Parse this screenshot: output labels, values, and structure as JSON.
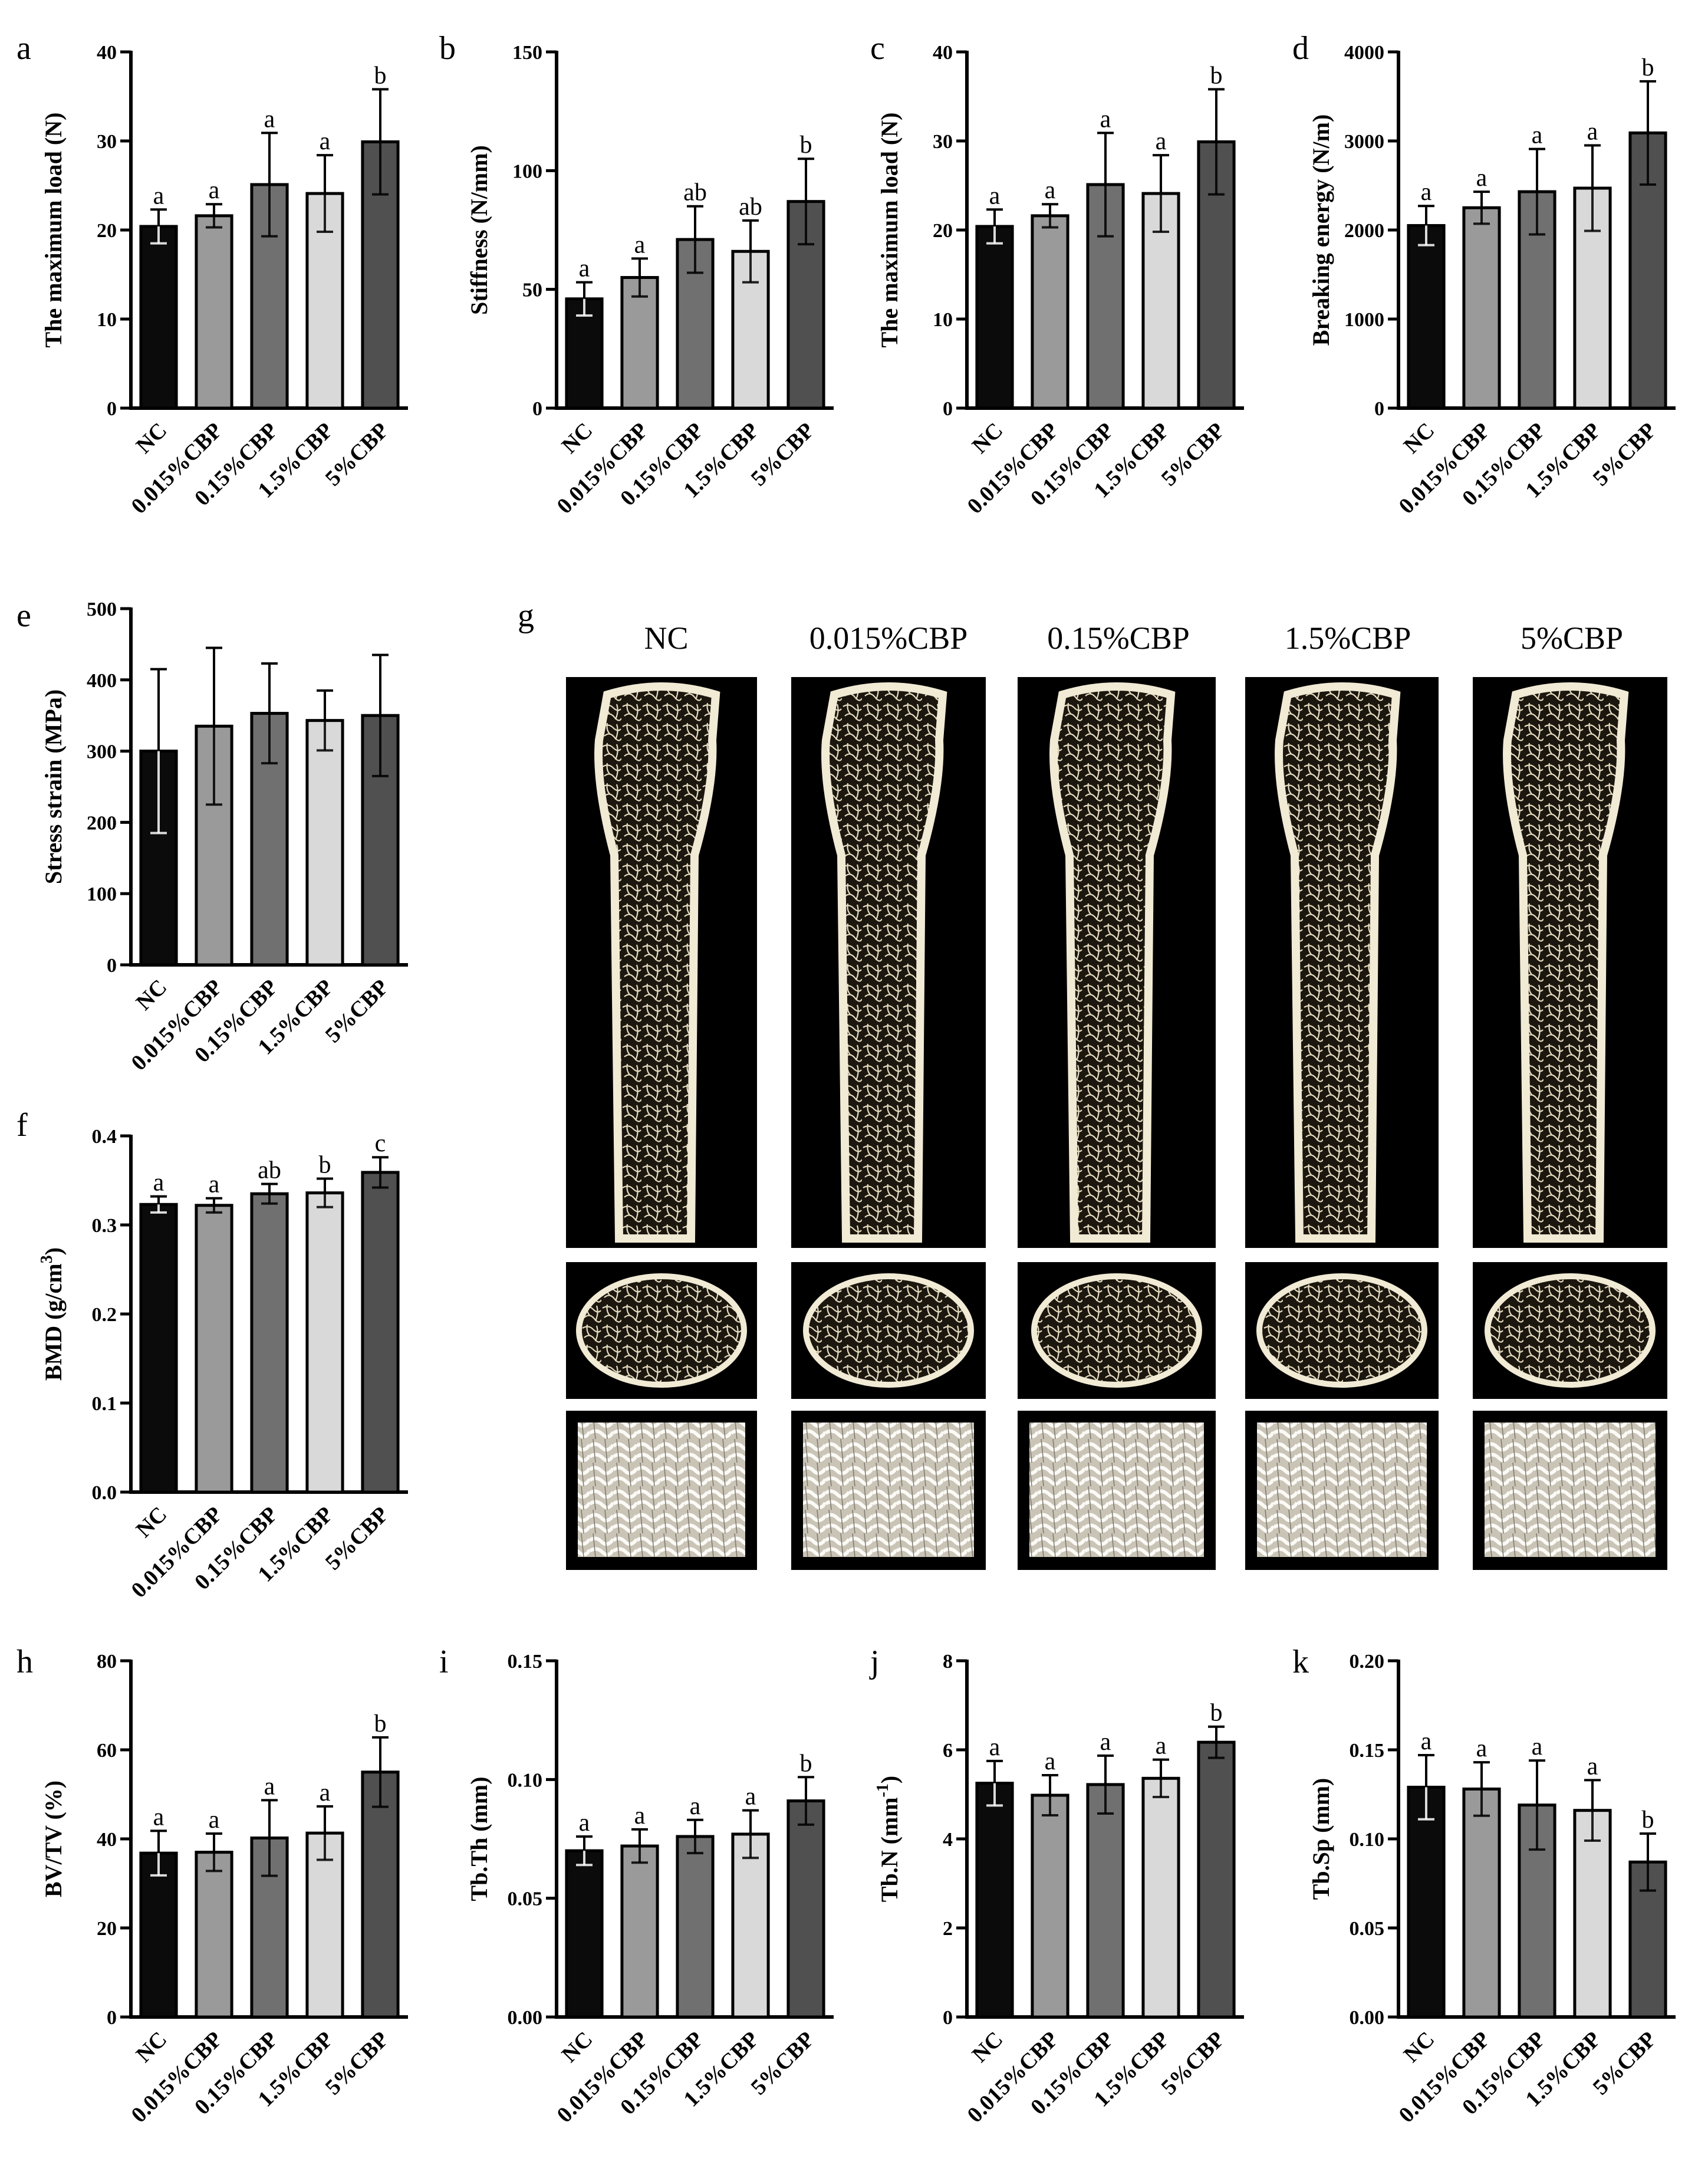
{
  "colors": {
    "bars": [
      "#0b0b0b",
      "#9a9a9a",
      "#707070",
      "#d9d9d9",
      "#505050"
    ]
  },
  "chart_data": [
    {
      "id": "a",
      "type": "bar",
      "title": "",
      "panel_label": "a",
      "ylabel": "The maximum load (N)",
      "xlabel": "",
      "categories": [
        "NC",
        "0.015%CBP",
        "0.15%CBP",
        "1.5%CBP",
        "5%CBP"
      ],
      "values": [
        20.4,
        21.6,
        25.1,
        24.1,
        29.9
      ],
      "errors": [
        1.9,
        1.3,
        5.8,
        4.3,
        5.9
      ],
      "significance": [
        "a",
        "a",
        "a",
        "a",
        "b"
      ],
      "ylim": [
        0,
        40
      ],
      "yticks": [
        0,
        10,
        20,
        30,
        40
      ],
      "ytick_labels": [
        "0",
        "10",
        "20",
        "30",
        "40"
      ]
    },
    {
      "id": "b",
      "type": "bar",
      "title": "",
      "panel_label": "b",
      "ylabel": "Stiffness (N/mm)",
      "xlabel": "",
      "categories": [
        "NC",
        "0.015%CBP",
        "0.15%CBP",
        "1.5%CBP",
        "5%CBP"
      ],
      "values": [
        46,
        55,
        71,
        66,
        87
      ],
      "errors": [
        7,
        8,
        14,
        13,
        18
      ],
      "significance": [
        "a",
        "a",
        "ab",
        "ab",
        "b"
      ],
      "ylim": [
        0,
        150
      ],
      "yticks": [
        0,
        50,
        100,
        150
      ],
      "ytick_labels": [
        "0",
        "50",
        "100",
        "150"
      ]
    },
    {
      "id": "c",
      "type": "bar",
      "title": "",
      "panel_label": "c",
      "ylabel": "The maximum load (N)",
      "xlabel": "",
      "categories": [
        "NC",
        "0.015%CBP",
        "0.15%CBP",
        "1.5%CBP",
        "5%CBP"
      ],
      "values": [
        20.4,
        21.6,
        25.1,
        24.1,
        29.9
      ],
      "errors": [
        1.9,
        1.3,
        5.8,
        4.3,
        5.9
      ],
      "significance": [
        "a",
        "a",
        "a",
        "a",
        "b"
      ],
      "ylim": [
        0,
        40
      ],
      "yticks": [
        0,
        10,
        20,
        30,
        40
      ],
      "ytick_labels": [
        "0",
        "10",
        "20",
        "30",
        "40"
      ]
    },
    {
      "id": "d",
      "type": "bar",
      "title": "",
      "panel_label": "d",
      "ylabel": "Breaking energy (N/m)",
      "xlabel": "",
      "categories": [
        "NC",
        "0.015%CBP",
        "0.15%CBP",
        "1.5%CBP",
        "5%CBP"
      ],
      "values": [
        2050,
        2250,
        2430,
        2470,
        3090
      ],
      "errors": [
        220,
        180,
        480,
        480,
        580
      ],
      "significance": [
        "a",
        "a",
        "a",
        "a",
        "b"
      ],
      "ylim": [
        0,
        4000
      ],
      "yticks": [
        0,
        1000,
        2000,
        3000,
        4000
      ],
      "ytick_labels": [
        "0",
        "1000",
        "2000",
        "3000",
        "4000"
      ]
    },
    {
      "id": "e",
      "type": "bar",
      "title": "",
      "panel_label": "e",
      "ylabel": "Stress strain (MPa)",
      "xlabel": "",
      "categories": [
        "NC",
        "0.015%CBP",
        "0.15%CBP",
        "1.5%CBP",
        "5%CBP"
      ],
      "values": [
        300,
        335,
        353,
        343,
        350
      ],
      "errors": [
        115,
        110,
        70,
        42,
        85
      ],
      "significance": [
        "",
        "",
        "",
        "",
        ""
      ],
      "ylim": [
        0,
        500
      ],
      "yticks": [
        0,
        100,
        200,
        300,
        400,
        500
      ],
      "ytick_labels": [
        "0",
        "100",
        "200",
        "300",
        "400",
        "500"
      ]
    },
    {
      "id": "f",
      "type": "bar",
      "title": "",
      "panel_label": "f",
      "ylabel": "BMD (g/cm",
      "ylabel_sup": "3",
      "ylabel_post": ")",
      "xlabel": "",
      "categories": [
        "NC",
        "0.015%CBP",
        "0.15%CBP",
        "1.5%CBP",
        "5%CBP"
      ],
      "values": [
        0.323,
        0.322,
        0.335,
        0.336,
        0.359
      ],
      "errors": [
        0.009,
        0.008,
        0.011,
        0.016,
        0.017
      ],
      "significance": [
        "a",
        "a",
        "ab",
        "b",
        "c"
      ],
      "ylim": [
        0,
        0.4
      ],
      "yticks": [
        0,
        0.1,
        0.2,
        0.3,
        0.4
      ],
      "ytick_labels": [
        "0.0",
        "0.1",
        "0.2",
        "0.3",
        "0.4"
      ]
    },
    {
      "id": "h",
      "type": "bar",
      "title": "",
      "panel_label": "h",
      "ylabel": "BV/TV (%)",
      "xlabel": "",
      "categories": [
        "NC",
        "0.015%CBP",
        "0.15%CBP",
        "1.5%CBP",
        "5%CBP"
      ],
      "values": [
        36.8,
        37.0,
        40.2,
        41.3,
        55.0
      ],
      "errors": [
        5.0,
        4.2,
        8.5,
        6.0,
        7.8
      ],
      "significance": [
        "a",
        "a",
        "a",
        "a",
        "b"
      ],
      "ylim": [
        0,
        80
      ],
      "yticks": [
        0,
        20,
        40,
        60,
        80
      ],
      "ytick_labels": [
        "0",
        "20",
        "40",
        "60",
        "80"
      ]
    },
    {
      "id": "i",
      "type": "bar",
      "title": "",
      "panel_label": "i",
      "ylabel": "Tb.Th (mm)",
      "xlabel": "",
      "categories": [
        "NC",
        "0.015%CBP",
        "0.15%CBP",
        "1.5%CBP",
        "5%CBP"
      ],
      "values": [
        0.07,
        0.072,
        0.076,
        0.077,
        0.091
      ],
      "errors": [
        0.006,
        0.007,
        0.007,
        0.01,
        0.01
      ],
      "significance": [
        "a",
        "a",
        "a",
        "a",
        "b"
      ],
      "ylim": [
        0,
        0.15
      ],
      "yticks": [
        0,
        0.05,
        0.1,
        0.15
      ],
      "ytick_labels": [
        "0.00",
        "0.05",
        "0.10",
        "0.15"
      ]
    },
    {
      "id": "j",
      "type": "bar",
      "title": "",
      "panel_label": "j",
      "ylabel": "Tb.N (mm",
      "ylabel_sup": "-1",
      "ylabel_post": ")",
      "xlabel": "",
      "categories": [
        "NC",
        "0.015%CBP",
        "0.15%CBP",
        "1.5%CBP",
        "5%CBP"
      ],
      "values": [
        5.25,
        4.98,
        5.22,
        5.36,
        6.17
      ],
      "errors": [
        0.5,
        0.45,
        0.65,
        0.42,
        0.35
      ],
      "significance": [
        "a",
        "a",
        "a",
        "a",
        "b"
      ],
      "ylim": [
        0,
        8
      ],
      "yticks": [
        0,
        2,
        4,
        6,
        8
      ],
      "ytick_labels": [
        "0",
        "2",
        "4",
        "6",
        "8"
      ]
    },
    {
      "id": "k",
      "type": "bar",
      "title": "",
      "panel_label": "k",
      "ylabel": "Tb.Sp (mm)",
      "xlabel": "",
      "categories": [
        "NC",
        "0.015%CBP",
        "0.15%CBP",
        "1.5%CBP",
        "5%CBP"
      ],
      "values": [
        0.129,
        0.128,
        0.119,
        0.116,
        0.087
      ],
      "errors": [
        0.018,
        0.015,
        0.025,
        0.017,
        0.016
      ],
      "significance": [
        "a",
        "a",
        "a",
        "a",
        "b"
      ],
      "ylim": [
        0,
        0.2
      ],
      "yticks": [
        0,
        0.05,
        0.1,
        0.15,
        0.2
      ],
      "ytick_labels": [
        "0.00",
        "0.05",
        "0.10",
        "0.15",
        "0.20"
      ]
    }
  ],
  "images": {
    "panel_label": "g",
    "groups": [
      "NC",
      "0.015%CBP",
      "0.15%CBP",
      "1.5%CBP",
      "5%CBP"
    ]
  }
}
